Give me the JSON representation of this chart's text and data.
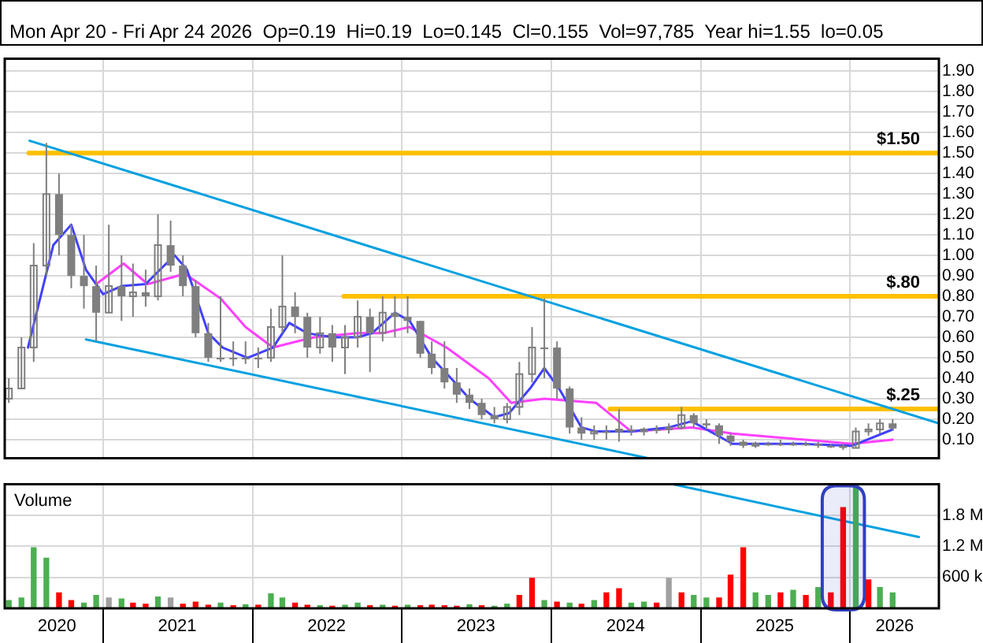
{
  "chart_data": [
    {
      "type": "candlestick",
      "subtitle": "Mon Apr 20 - Fri Apr 24 2026  Op=0.19  Hi=0.19  Lo=0.145  Cl=0.155  Vol=97,785  Year hi=1.55  lo=0.05",
      "color": "#7f7f7f",
      "x": [
        "2020-05-15",
        "2020-06-15",
        "2020-07-15",
        "2020-08-15",
        "2020-09-15",
        "2020-10-15",
        "2020-11-15",
        "2020-12-15",
        "2021-01-15",
        "2021-02-15",
        "2021-03-15",
        "2021-04-15",
        "2021-05-15",
        "2021-06-15",
        "2021-07-15",
        "2021-08-15",
        "2021-09-15",
        "2021-10-15",
        "2021-11-15",
        "2021-12-15",
        "2022-01-15",
        "2022-02-15",
        "2022-03-15",
        "2022-04-15",
        "2022-05-15",
        "2022-06-15",
        "2022-07-15",
        "2022-08-15",
        "2022-09-15",
        "2022-10-15",
        "2022-11-15",
        "2022-12-15",
        "2023-01-15",
        "2023-02-15",
        "2023-03-15",
        "2023-04-15",
        "2023-05-15",
        "2023-06-15",
        "2023-07-15",
        "2023-08-15",
        "2023-09-15",
        "2023-10-15",
        "2023-11-15",
        "2023-12-15",
        "2024-01-15",
        "2024-02-15",
        "2024-03-15",
        "2024-04-15",
        "2024-05-15",
        "2024-06-15",
        "2024-07-15",
        "2024-08-15",
        "2024-09-15",
        "2024-10-15",
        "2024-11-15",
        "2024-12-15",
        "2025-01-15",
        "2025-02-15",
        "2025-03-15",
        "2025-04-15",
        "2025-05-15",
        "2025-06-15",
        "2025-07-15",
        "2025-08-15",
        "2025-09-15",
        "2025-10-15",
        "2025-11-15",
        "2025-12-15",
        "2026-01-15",
        "2026-02-15",
        "2026-03-15",
        "2026-04-15"
      ],
      "ohlc": [
        [
          0.3,
          0.4,
          0.28,
          0.35
        ],
        [
          0.35,
          0.6,
          0.35,
          0.55
        ],
        [
          0.55,
          1.06,
          0.48,
          0.95
        ],
        [
          0.95,
          1.55,
          0.9,
          1.3
        ],
        [
          1.3,
          1.4,
          1.0,
          1.1
        ],
        [
          1.1,
          1.15,
          0.84,
          0.9
        ],
        [
          0.9,
          1.1,
          0.74,
          0.85
        ],
        [
          0.85,
          0.95,
          0.58,
          0.72
        ],
        [
          0.72,
          1.15,
          0.72,
          0.85
        ],
        [
          0.85,
          1.0,
          0.68,
          0.8
        ],
        [
          0.8,
          0.96,
          0.7,
          0.82
        ],
        [
          0.82,
          0.93,
          0.75,
          0.8
        ],
        [
          0.8,
          1.2,
          0.78,
          1.05
        ],
        [
          1.05,
          1.17,
          0.92,
          0.95
        ],
        [
          0.95,
          1.0,
          0.8,
          0.85
        ],
        [
          0.85,
          0.88,
          0.6,
          0.62
        ],
        [
          0.62,
          0.67,
          0.48,
          0.5
        ],
        [
          0.5,
          0.8,
          0.48,
          0.5
        ],
        [
          0.5,
          0.58,
          0.46,
          0.5
        ],
        [
          0.5,
          0.58,
          0.47,
          0.5
        ],
        [
          0.5,
          0.55,
          0.45,
          0.5
        ],
        [
          0.5,
          0.74,
          0.48,
          0.65
        ],
        [
          0.65,
          1.0,
          0.62,
          0.75
        ],
        [
          0.75,
          0.82,
          0.62,
          0.7
        ],
        [
          0.7,
          0.72,
          0.5,
          0.55
        ],
        [
          0.55,
          0.7,
          0.52,
          0.62
        ],
        [
          0.62,
          0.66,
          0.48,
          0.55
        ],
        [
          0.55,
          0.66,
          0.42,
          0.6
        ],
        [
          0.6,
          0.78,
          0.55,
          0.7
        ],
        [
          0.7,
          0.74,
          0.43,
          0.62
        ],
        [
          0.62,
          0.8,
          0.58,
          0.72
        ],
        [
          0.72,
          0.8,
          0.6,
          0.7
        ],
        [
          0.7,
          0.8,
          0.62,
          0.68
        ],
        [
          0.68,
          0.68,
          0.5,
          0.52
        ],
        [
          0.52,
          0.58,
          0.42,
          0.45
        ],
        [
          0.45,
          0.58,
          0.35,
          0.38
        ],
        [
          0.38,
          0.45,
          0.28,
          0.32
        ],
        [
          0.32,
          0.35,
          0.25,
          0.28
        ],
        [
          0.28,
          0.3,
          0.2,
          0.22
        ],
        [
          0.22,
          0.26,
          0.18,
          0.2
        ],
        [
          0.2,
          0.28,
          0.18,
          0.26
        ],
        [
          0.26,
          0.48,
          0.22,
          0.42
        ],
        [
          0.42,
          0.65,
          0.38,
          0.55
        ],
        [
          0.55,
          0.79,
          0.4,
          0.55
        ],
        [
          0.55,
          0.58,
          0.3,
          0.35
        ],
        [
          0.35,
          0.36,
          0.13,
          0.16
        ],
        [
          0.16,
          0.21,
          0.1,
          0.13
        ],
        [
          0.13,
          0.17,
          0.1,
          0.14
        ],
        [
          0.14,
          0.17,
          0.1,
          0.14
        ],
        [
          0.14,
          0.25,
          0.09,
          0.15
        ],
        [
          0.15,
          0.17,
          0.12,
          0.14
        ],
        [
          0.14,
          0.16,
          0.12,
          0.15
        ],
        [
          0.15,
          0.17,
          0.13,
          0.15
        ],
        [
          0.15,
          0.18,
          0.13,
          0.16
        ],
        [
          0.16,
          0.26,
          0.15,
          0.22
        ],
        [
          0.22,
          0.23,
          0.16,
          0.18
        ],
        [
          0.18,
          0.2,
          0.15,
          0.17
        ],
        [
          0.17,
          0.18,
          0.08,
          0.12
        ],
        [
          0.12,
          0.13,
          0.07,
          0.09
        ],
        [
          0.09,
          0.1,
          0.06,
          0.07
        ],
        [
          0.07,
          0.09,
          0.06,
          0.08
        ],
        [
          0.08,
          0.09,
          0.07,
          0.08
        ],
        [
          0.08,
          0.1,
          0.07,
          0.08
        ],
        [
          0.08,
          0.09,
          0.07,
          0.08
        ],
        [
          0.08,
          0.09,
          0.07,
          0.08
        ],
        [
          0.08,
          0.09,
          0.06,
          0.07
        ],
        [
          0.07,
          0.08,
          0.06,
          0.07
        ],
        [
          0.07,
          0.08,
          0.05,
          0.06
        ],
        [
          0.06,
          0.16,
          0.06,
          0.14
        ],
        [
          0.14,
          0.18,
          0.12,
          0.15
        ],
        [
          0.15,
          0.2,
          0.13,
          0.18
        ],
        [
          0.18,
          0.2,
          0.145,
          0.155
        ]
      ],
      "series": [
        {
          "type": "line",
          "color": "#00a0e0",
          "x": [
            "2020-07-05",
            "2026-08-06"
          ],
          "values": [
            1.56,
            0.18
          ]
        },
        {
          "type": "line",
          "color": "#00a0e0",
          "x": [
            "2020-11-20",
            "2024-08-25"
          ],
          "values": [
            0.59,
            0.01
          ]
        },
        {
          "type": "line",
          "color": "#ffc000",
          "name": "$1.50",
          "x": [
            "2020-07-03",
            "2026-08-06"
          ],
          "values": [
            1.5,
            1.5
          ]
        },
        {
          "type": "line",
          "color": "#ffc000",
          "name": "$.80",
          "x": [
            "2022-08-12",
            "2026-08-06"
          ],
          "values": [
            0.8,
            0.8
          ]
        },
        {
          "type": "line",
          "color": "#ffc000",
          "name": "$.25",
          "x": [
            "2024-05-24",
            "2026-08-06"
          ],
          "values": [
            0.25,
            0.25
          ]
        },
        {
          "type": "line",
          "color": "#4040ff",
          "x": [
            "2020-07-01",
            "2020-09-01",
            "2020-10-15",
            "2020-11-20",
            "2021-01-01",
            "2021-02-15",
            "2021-04-15",
            "2021-05-20",
            "2021-06-25",
            "2021-07-25",
            "2021-09-15",
            "2021-10-20",
            "2021-12-20",
            "2022-02-20",
            "2022-04-01",
            "2022-05-15",
            "2022-07-15",
            "2022-09-15",
            "2022-10-20",
            "2022-12-15",
            "2023-01-20",
            "2023-03-15",
            "2023-05-01",
            "2023-06-15",
            "2023-08-15",
            "2023-09-20",
            "2023-11-10",
            "2023-12-15",
            "2024-01-20",
            "2024-03-15",
            "2024-04-20",
            "2024-07-15",
            "2024-10-15",
            "2024-12-10",
            "2025-03-20",
            "2025-09-01",
            "2026-01-05",
            "2026-04-15"
          ],
          "values": [
            0.55,
            1.05,
            1.15,
            0.93,
            0.81,
            0.85,
            0.86,
            0.93,
            1.0,
            0.93,
            0.62,
            0.55,
            0.5,
            0.55,
            0.67,
            0.62,
            0.6,
            0.6,
            0.62,
            0.72,
            0.68,
            0.5,
            0.4,
            0.3,
            0.21,
            0.23,
            0.35,
            0.45,
            0.35,
            0.16,
            0.14,
            0.14,
            0.16,
            0.19,
            0.08,
            0.08,
            0.07,
            0.15
          ]
        },
        {
          "type": "line",
          "color": "#ff40ff",
          "x": [
            "2020-12-15",
            "2021-02-20",
            "2021-04-20",
            "2021-07-20",
            "2021-10-15",
            "2021-12-15",
            "2022-02-20",
            "2022-04-20",
            "2022-06-01",
            "2022-09-15",
            "2022-11-15",
            "2023-01-20",
            "2023-04-20",
            "2023-08-01",
            "2023-09-25",
            "2023-12-15",
            "2024-04-20",
            "2024-07-15",
            "2024-12-10",
            "2025-03-20",
            "2026-01-05",
            "2026-04-15"
          ],
          "values": [
            0.86,
            0.96,
            0.86,
            0.91,
            0.79,
            0.65,
            0.55,
            0.58,
            0.6,
            0.62,
            0.62,
            0.65,
            0.55,
            0.4,
            0.28,
            0.3,
            0.28,
            0.14,
            0.16,
            0.13,
            0.08,
            0.1
          ]
        }
      ],
      "xlim": [
        "2020-05-05",
        "2026-08-06"
      ],
      "xticks": [
        {
          "value": "2021-01-01",
          "label": null
        },
        {
          "value": "2022-01-01",
          "label": null
        },
        {
          "value": "2023-01-01",
          "label": null
        },
        {
          "value": "2024-01-01",
          "label": null
        },
        {
          "value": "2025-01-01",
          "label": null
        },
        {
          "value": "2026-01-01",
          "label": null
        }
      ],
      "ylim": [
        0.01,
        1.96
      ],
      "yticks": [
        {
          "value": 0.1,
          "label": "0.10"
        },
        {
          "value": 0.2,
          "label": "0.20"
        },
        {
          "value": 0.3,
          "label": "0.30"
        },
        {
          "value": 0.4,
          "label": "0.40"
        },
        {
          "value": 0.5,
          "label": "0.50"
        },
        {
          "value": 0.6,
          "label": "0.60"
        },
        {
          "value": 0.7,
          "label": "0.70"
        },
        {
          "value": 0.8,
          "label": "0.80"
        },
        {
          "value": 0.9,
          "label": "0.90"
        },
        {
          "value": 1.0,
          "label": "1.00"
        },
        {
          "value": 1.1,
          "label": "1.10"
        },
        {
          "value": 1.2,
          "label": "1.20"
        },
        {
          "value": 1.3,
          "label": "1.30"
        },
        {
          "value": 1.4,
          "label": "1.40"
        },
        {
          "value": 1.5,
          "label": "1.50"
        },
        {
          "value": 1.6,
          "label": "1.60"
        },
        {
          "value": 1.7,
          "label": "1.70"
        },
        {
          "value": 1.8,
          "label": "1.80"
        },
        {
          "value": 1.9,
          "label": "1.90"
        }
      ],
      "grid": true,
      "tick_labels": "y"
    },
    {
      "type": "bar",
      "title": "Volume",
      "x": [
        "2020-05-15",
        "2020-06-15",
        "2020-07-15",
        "2020-08-15",
        "2020-09-15",
        "2020-10-15",
        "2020-11-15",
        "2020-12-15",
        "2021-01-15",
        "2021-02-15",
        "2021-03-15",
        "2021-04-15",
        "2021-05-15",
        "2021-06-15",
        "2021-07-15",
        "2021-08-15",
        "2021-09-15",
        "2021-10-15",
        "2021-11-15",
        "2021-12-15",
        "2022-01-15",
        "2022-02-15",
        "2022-03-15",
        "2022-04-15",
        "2022-05-15",
        "2022-06-15",
        "2022-07-15",
        "2022-08-15",
        "2022-09-15",
        "2022-10-15",
        "2022-11-15",
        "2022-12-15",
        "2023-01-15",
        "2023-02-15",
        "2023-03-15",
        "2023-04-15",
        "2023-05-15",
        "2023-06-15",
        "2023-07-15",
        "2023-08-15",
        "2023-09-15",
        "2023-10-15",
        "2023-11-15",
        "2023-12-15",
        "2024-01-15",
        "2024-02-15",
        "2024-03-15",
        "2024-04-15",
        "2024-05-15",
        "2024-06-15",
        "2024-07-15",
        "2024-08-15",
        "2024-09-15",
        "2024-10-15",
        "2024-11-15",
        "2024-12-15",
        "2025-01-15",
        "2025-02-15",
        "2025-03-15",
        "2025-04-15",
        "2025-05-15",
        "2025-06-15",
        "2025-07-15",
        "2025-08-15",
        "2025-09-15",
        "2025-10-15",
        "2025-11-15",
        "2025-12-15",
        "2026-01-15",
        "2026-02-15",
        "2026-03-15",
        "2026-04-15"
      ],
      "values": [
        150000,
        200000,
        1170000,
        970000,
        300000,
        150000,
        100000,
        250000,
        200000,
        180000,
        100000,
        80000,
        220000,
        200000,
        80000,
        120000,
        60000,
        100000,
        50000,
        70000,
        60000,
        280000,
        200000,
        100000,
        60000,
        50000,
        40000,
        60000,
        100000,
        50000,
        60000,
        40000,
        60000,
        50000,
        60000,
        50000,
        40000,
        70000,
        50000,
        40000,
        80000,
        250000,
        580000,
        150000,
        120000,
        100000,
        80000,
        150000,
        300000,
        380000,
        100000,
        120000,
        100000,
        580000,
        300000,
        250000,
        200000,
        200000,
        640000,
        1170000,
        300000,
        250000,
        300000,
        350000,
        250000,
        400000,
        300000,
        1950000,
        2400000,
        550000,
        400000,
        300000
      ],
      "colors": [
        "#4caf50",
        "#4caf50",
        "#4caf50",
        "#4caf50",
        "#ff0000",
        "#ff0000",
        "#4caf50",
        "#4caf50",
        "#a0a0a0",
        "#4caf50",
        "#ff0000",
        "#ff0000",
        "#4caf50",
        "#a0a0a0",
        "#ff0000",
        "#ff0000",
        "#ff0000",
        "#4caf50",
        "#ff0000",
        "#4caf50",
        "#ff0000",
        "#4caf50",
        "#4caf50",
        "#ff0000",
        "#ff0000",
        "#4caf50",
        "#ff0000",
        "#4caf50",
        "#4caf50",
        "#ff0000",
        "#4caf50",
        "#ff0000",
        "#4caf50",
        "#ff0000",
        "#ff0000",
        "#ff0000",
        "#ff0000",
        "#4caf50",
        "#ff0000",
        "#4caf50",
        "#4caf50",
        "#ff0000",
        "#ff0000",
        "#4caf50",
        "#ff0000",
        "#4caf50",
        "#ff0000",
        "#4caf50",
        "#ff0000",
        "#ff0000",
        "#4caf50",
        "#4caf50",
        "#ff0000",
        "#a0a0a0",
        "#ff0000",
        "#4caf50",
        "#4caf50",
        "#ff0000",
        "#ff0000",
        "#ff0000",
        "#4caf50",
        "#4caf50",
        "#ff0000",
        "#4caf50",
        "#ff0000",
        "#4caf50",
        "#ff0000",
        "#ff0000",
        "#4caf50",
        "#ff0000",
        "#4caf50",
        "#4caf50"
      ],
      "series": [
        {
          "type": "line",
          "color": "#00a0e0",
          "x": [
            "2024-10-25",
            "2026-06-18"
          ],
          "values": [
            2400000,
            1380000
          ]
        }
      ],
      "bands": [
        {
          "axis": "x",
          "from": "2025-10-25",
          "to": "2026-02-05",
          "color": "#3040c0"
        }
      ],
      "xlim": [
        "2020-05-05",
        "2026-08-06"
      ],
      "xticks": [
        {
          "value": "2020-09-10",
          "label": "2020"
        },
        {
          "value": "2021-01-01",
          "label": null
        },
        {
          "value": "2021-07-01",
          "label": "2021"
        },
        {
          "value": "2022-01-01",
          "label": null
        },
        {
          "value": "2022-07-01",
          "label": "2022"
        },
        {
          "value": "2023-01-01",
          "label": null
        },
        {
          "value": "2023-07-01",
          "label": "2023"
        },
        {
          "value": "2024-01-01",
          "label": null
        },
        {
          "value": "2024-07-01",
          "label": "2024"
        },
        {
          "value": "2025-01-01",
          "label": null
        },
        {
          "value": "2025-07-01",
          "label": "2025"
        },
        {
          "value": "2026-01-01",
          "label": null
        },
        {
          "value": "2026-04-20",
          "label": "2026"
        }
      ],
      "ylim": [
        0,
        2400000
      ],
      "yticks": [
        {
          "value": 600000,
          "label": "600 k"
        },
        {
          "value": 1200000,
          "label": "1.2 M"
        },
        {
          "value": 1800000,
          "label": "1.8 M"
        }
      ],
      "grid": true
    }
  ]
}
